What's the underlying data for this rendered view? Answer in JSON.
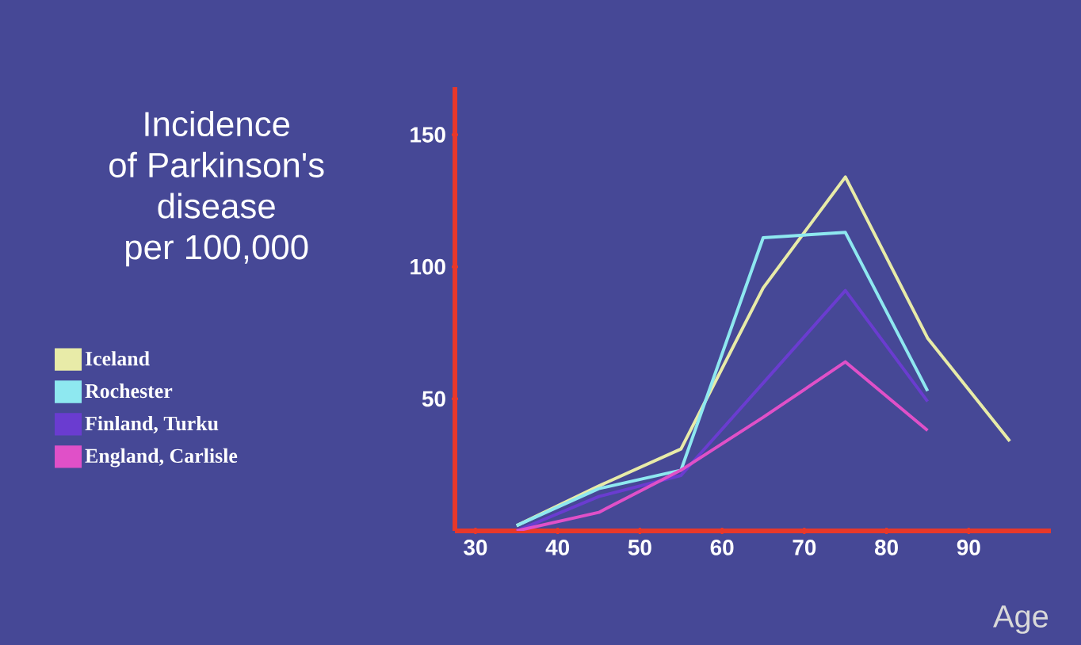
{
  "chart_data": {
    "type": "line",
    "title": "Incidence\nof Parkinson's\ndisease\nper 100,000",
    "xlabel": "Age",
    "x": [
      35,
      45,
      55,
      65,
      75,
      85,
      95
    ],
    "series": [
      {
        "name": "Iceland",
        "color": "#e8eba8",
        "values": [
          2,
          17,
          31,
          92,
          134,
          73,
          34
        ]
      },
      {
        "name": "Rochester",
        "color": "#8ee8f0",
        "values": [
          2,
          16,
          23,
          111,
          113,
          53,
          null
        ]
      },
      {
        "name": "Finland, Turku",
        "color": "#6a3cd0",
        "values": [
          0,
          13,
          21,
          56,
          91,
          49,
          null
        ]
      },
      {
        "name": "England, Carlisle",
        "color": "#e050c8",
        "values": [
          0,
          7,
          23,
          43,
          64,
          38,
          null
        ]
      }
    ],
    "xlim": [
      27.5,
      100
    ],
    "ylim": [
      0,
      168
    ],
    "xticks": [
      30,
      40,
      50,
      60,
      70,
      80,
      90
    ],
    "yticks": [
      50,
      100,
      150
    ],
    "grid": false,
    "legend": "left",
    "marker": "none",
    "line_style": "solid"
  }
}
